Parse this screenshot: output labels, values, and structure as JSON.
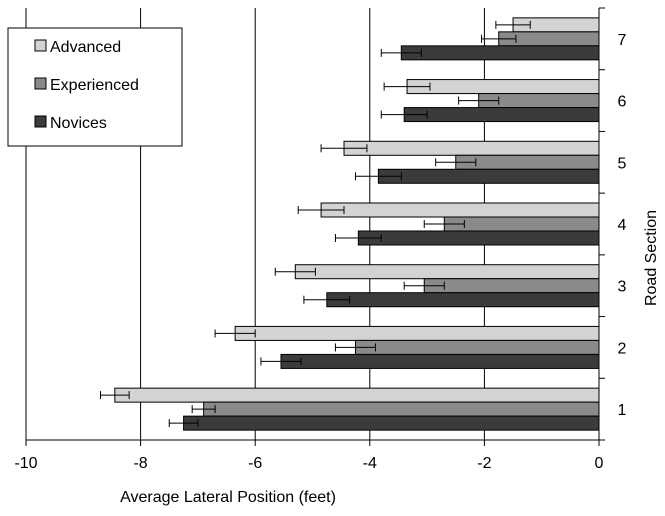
{
  "chart_data": {
    "type": "bar",
    "orientation": "horizontal",
    "title": "",
    "xlabel": "Average Lateral Position (feet)",
    "ylabel": "Road Section",
    "xlim": [
      -10,
      0
    ],
    "x_ticks": [
      -10,
      -8,
      -6,
      -4,
      -2,
      0
    ],
    "categories": [
      "1",
      "2",
      "3",
      "4",
      "5",
      "6",
      "7"
    ],
    "grid": "vertical",
    "legend": "top-left",
    "series": [
      {
        "name": "Advanced",
        "color": "#d3d3d3",
        "values": [
          -8.45,
          -6.35,
          -5.3,
          -4.85,
          -4.45,
          -3.35,
          -1.5
        ],
        "errors": [
          0.25,
          0.35,
          0.35,
          0.4,
          0.4,
          0.4,
          0.3
        ]
      },
      {
        "name": "Experienced",
        "color": "#8a8a8a",
        "values": [
          -6.9,
          -4.25,
          -3.05,
          -2.7,
          -2.5,
          -2.1,
          -1.75
        ],
        "errors": [
          0.2,
          0.35,
          0.35,
          0.35,
          0.35,
          0.35,
          0.3
        ]
      },
      {
        "name": "Novices",
        "color": "#3b3b3b",
        "values": [
          -7.25,
          -5.55,
          -4.75,
          -4.2,
          -3.85,
          -3.4,
          -3.45
        ],
        "errors": [
          0.25,
          0.35,
          0.4,
          0.4,
          0.4,
          0.4,
          0.35
        ]
      }
    ]
  }
}
